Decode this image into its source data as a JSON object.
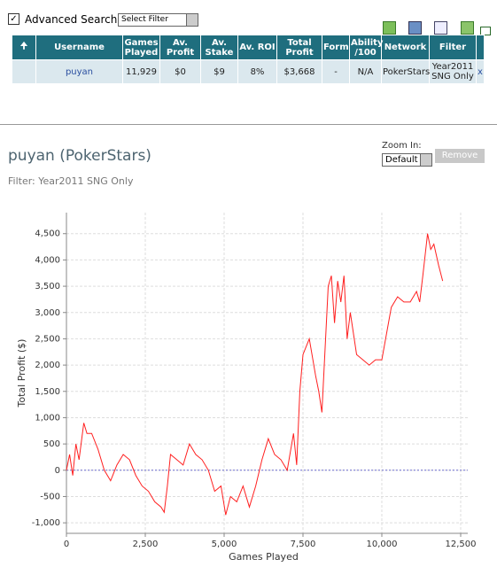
{
  "search": {
    "label": "Advanced Search",
    "filter_select": "Select Filter"
  },
  "table": {
    "headers": [
      "Username",
      "Games Played",
      "Av. Profit",
      "Av. Stake",
      "Av. ROI",
      "Total Profit",
      "Form",
      "Ability /100",
      "Network",
      "Filter"
    ],
    "rows": [
      [
        "puyan",
        "11,929",
        "$0",
        "$9",
        "8%",
        "$3,668",
        "-",
        "N/A",
        "PokerStars",
        "Year2011 SNG Only",
        "x"
      ]
    ]
  },
  "profile": {
    "title": "puyan (PokerStars)",
    "filter": "Filter: Year2011 SNG Only",
    "zoom_label": "Zoom In:",
    "zoom_select": "Default",
    "remove_button": "Remove"
  },
  "chart_data": {
    "type": "line",
    "xlabel": "Games Played",
    "ylabel": "Total Profit ($)",
    "x": [
      0,
      100,
      200,
      300,
      400,
      550,
      650,
      800,
      1000,
      1200,
      1400,
      1600,
      1800,
      2000,
      2200,
      2400,
      2600,
      2800,
      3000,
      3100,
      3200,
      3300,
      3500,
      3700,
      3900,
      4100,
      4300,
      4500,
      4700,
      4900,
      5050,
      5200,
      5400,
      5600,
      5800,
      6000,
      6200,
      6400,
      6600,
      6800,
      7000,
      7200,
      7300,
      7400,
      7500,
      7700,
      7900,
      8000,
      8100,
      8200,
      8300,
      8400,
      8500,
      8600,
      8700,
      8800,
      8900,
      9000,
      9200,
      9400,
      9600,
      9800,
      10000,
      10150,
      10300,
      10500,
      10700,
      10900,
      11100,
      11200,
      11300,
      11450,
      11550,
      11650,
      11800,
      11929
    ],
    "series": [
      {
        "name": "Total Profit",
        "color": "#ff2020",
        "values": [
          0,
          300,
          -100,
          500,
          200,
          900,
          700,
          700,
          400,
          0,
          -200,
          100,
          300,
          200,
          -100,
          -300,
          -400,
          -600,
          -700,
          -800,
          -300,
          300,
          200,
          100,
          500,
          300,
          200,
          0,
          -400,
          -300,
          -850,
          -500,
          -600,
          -300,
          -700,
          -300,
          200,
          600,
          300,
          200,
          0,
          700,
          100,
          1500,
          2200,
          2500,
          1800,
          1500,
          1100,
          2300,
          3500,
          3700,
          2800,
          3600,
          3200,
          3700,
          2500,
          3000,
          2200,
          2100,
          2000,
          2100,
          2100,
          2600,
          3100,
          3300,
          3200,
          3200,
          3400,
          3200,
          3700,
          4500,
          4200,
          4300,
          3900,
          3600
        ]
      }
    ],
    "xlim": [
      0,
      12500
    ],
    "xticks": [
      0,
      {
        "value": 2500,
        "label": "2,500"
      },
      {
        "value": 5000,
        "label": "5,000"
      },
      {
        "value": 7500,
        "label": "7,500"
      },
      {
        "value": 10000,
        "label": "10,000"
      },
      {
        "value": 12500,
        "label": "12,500"
      }
    ],
    "ylim": [
      -1200,
      4900
    ],
    "yticks": [
      {
        "value": -1000,
        "label": "-1,000"
      },
      -500,
      0,
      500,
      {
        "value": 1000,
        "label": "1,000"
      },
      {
        "value": 1500,
        "label": "1,500"
      },
      {
        "value": 2000,
        "label": "2,000"
      },
      {
        "value": 2500,
        "label": "2,500"
      },
      {
        "value": 3000,
        "label": "3,000"
      },
      {
        "value": 3500,
        "label": "3,500"
      },
      {
        "value": 4000,
        "label": "4,000"
      },
      {
        "value": 4500,
        "label": "4,500"
      }
    ],
    "grid": true
  }
}
